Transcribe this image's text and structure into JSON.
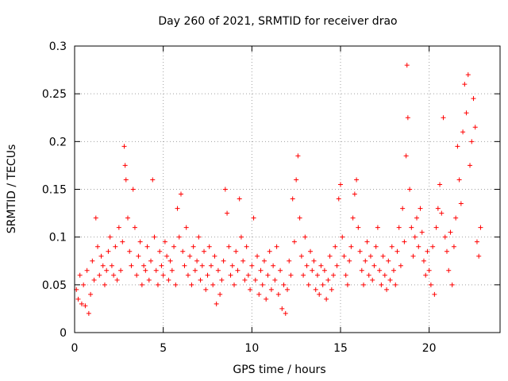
{
  "chart_data": {
    "type": "scatter",
    "title": "Day 260 of 2021, SRMTID for receiver drao",
    "xlabel": "GPS time / hours",
    "ylabel": "SRMTID / TECUs",
    "xlim": [
      0,
      24
    ],
    "ylim": [
      0,
      0.3
    ],
    "xticks": [
      0,
      5,
      10,
      15,
      20
    ],
    "xtick_labels": [
      "0",
      "5",
      "10",
      "15",
      "20"
    ],
    "yticks": [
      0,
      0.05,
      0.1,
      0.15,
      0.2,
      0.25,
      0.3
    ],
    "ytick_labels": [
      "0",
      "0.05",
      "0.1",
      "0.15",
      "0.2",
      "0.25",
      "0.3"
    ],
    "grid": true,
    "marker": "+",
    "series": [
      {
        "name": "SRMTID",
        "color": "#ff0000",
        "points": [
          [
            0.1,
            0.045
          ],
          [
            0.2,
            0.035
          ],
          [
            0.3,
            0.06
          ],
          [
            0.4,
            0.03
          ],
          [
            0.5,
            0.05
          ],
          [
            0.6,
            0.028
          ],
          [
            0.7,
            0.065
          ],
          [
            0.8,
            0.02
          ],
          [
            0.9,
            0.04
          ],
          [
            1.0,
            0.075
          ],
          [
            1.1,
            0.055
          ],
          [
            1.2,
            0.12
          ],
          [
            1.3,
            0.09
          ],
          [
            1.4,
            0.06
          ],
          [
            1.5,
            0.08
          ],
          [
            1.6,
            0.07
          ],
          [
            1.7,
            0.05
          ],
          [
            1.8,
            0.065
          ],
          [
            1.9,
            0.085
          ],
          [
            2.0,
            0.1
          ],
          [
            2.1,
            0.07
          ],
          [
            2.2,
            0.06
          ],
          [
            2.3,
            0.09
          ],
          [
            2.4,
            0.055
          ],
          [
            2.5,
            0.11
          ],
          [
            2.6,
            0.065
          ],
          [
            2.7,
            0.095
          ],
          [
            2.8,
            0.195
          ],
          [
            2.85,
            0.175
          ],
          [
            2.9,
            0.16
          ],
          [
            3.0,
            0.12
          ],
          [
            3.1,
            0.085
          ],
          [
            3.2,
            0.07
          ],
          [
            3.3,
            0.15
          ],
          [
            3.4,
            0.11
          ],
          [
            3.5,
            0.06
          ],
          [
            3.6,
            0.08
          ],
          [
            3.7,
            0.095
          ],
          [
            3.8,
            0.05
          ],
          [
            3.9,
            0.07
          ],
          [
            4.0,
            0.065
          ],
          [
            4.1,
            0.09
          ],
          [
            4.2,
            0.055
          ],
          [
            4.3,
            0.075
          ],
          [
            4.4,
            0.16
          ],
          [
            4.5,
            0.1
          ],
          [
            4.6,
            0.065
          ],
          [
            4.7,
            0.05
          ],
          [
            4.8,
            0.085
          ],
          [
            4.9,
            0.07
          ],
          [
            5.0,
            0.06
          ],
          [
            5.1,
            0.095
          ],
          [
            5.2,
            0.08
          ],
          [
            5.3,
            0.055
          ],
          [
            5.4,
            0.075
          ],
          [
            5.5,
            0.065
          ],
          [
            5.6,
            0.09
          ],
          [
            5.7,
            0.05
          ],
          [
            5.8,
            0.13
          ],
          [
            5.9,
            0.1
          ],
          [
            6.0,
            0.145
          ],
          [
            6.1,
            0.085
          ],
          [
            6.2,
            0.07
          ],
          [
            6.3,
            0.11
          ],
          [
            6.4,
            0.06
          ],
          [
            6.5,
            0.08
          ],
          [
            6.6,
            0.05
          ],
          [
            6.7,
            0.09
          ],
          [
            6.8,
            0.065
          ],
          [
            6.9,
            0.075
          ],
          [
            7.0,
            0.1
          ],
          [
            7.1,
            0.055
          ],
          [
            7.2,
            0.07
          ],
          [
            7.3,
            0.085
          ],
          [
            7.4,
            0.045
          ],
          [
            7.5,
            0.06
          ],
          [
            7.6,
            0.09
          ],
          [
            7.7,
            0.07
          ],
          [
            7.8,
            0.05
          ],
          [
            7.9,
            0.08
          ],
          [
            8.0,
            0.03
          ],
          [
            8.1,
            0.065
          ],
          [
            8.2,
            0.04
          ],
          [
            8.3,
            0.055
          ],
          [
            8.4,
            0.075
          ],
          [
            8.5,
            0.15
          ],
          [
            8.6,
            0.125
          ],
          [
            8.7,
            0.09
          ],
          [
            8.8,
            0.06
          ],
          [
            8.9,
            0.07
          ],
          [
            9.0,
            0.05
          ],
          [
            9.1,
            0.085
          ],
          [
            9.2,
            0.065
          ],
          [
            9.3,
            0.14
          ],
          [
            9.4,
            0.1
          ],
          [
            9.5,
            0.075
          ],
          [
            9.6,
            0.055
          ],
          [
            9.7,
            0.09
          ],
          [
            9.8,
            0.06
          ],
          [
            9.9,
            0.045
          ],
          [
            10.0,
            0.07
          ],
          [
            10.1,
            0.12
          ],
          [
            10.2,
            0.055
          ],
          [
            10.3,
            0.08
          ],
          [
            10.4,
            0.04
          ],
          [
            10.5,
            0.065
          ],
          [
            10.6,
            0.05
          ],
          [
            10.7,
            0.075
          ],
          [
            10.8,
            0.035
          ],
          [
            10.9,
            0.06
          ],
          [
            11.0,
            0.085
          ],
          [
            11.1,
            0.045
          ],
          [
            11.2,
            0.07
          ],
          [
            11.3,
            0.055
          ],
          [
            11.4,
            0.09
          ],
          [
            11.5,
            0.04
          ],
          [
            11.6,
            0.065
          ],
          [
            11.7,
            0.025
          ],
          [
            11.8,
            0.05
          ],
          [
            11.9,
            0.02
          ],
          [
            12.0,
            0.045
          ],
          [
            12.1,
            0.075
          ],
          [
            12.2,
            0.06
          ],
          [
            12.3,
            0.14
          ],
          [
            12.4,
            0.095
          ],
          [
            12.5,
            0.16
          ],
          [
            12.6,
            0.185
          ],
          [
            12.7,
            0.12
          ],
          [
            12.8,
            0.08
          ],
          [
            12.9,
            0.06
          ],
          [
            13.0,
            0.1
          ],
          [
            13.1,
            0.07
          ],
          [
            13.2,
            0.05
          ],
          [
            13.3,
            0.085
          ],
          [
            13.4,
            0.065
          ],
          [
            13.5,
            0.075
          ],
          [
            13.6,
            0.045
          ],
          [
            13.7,
            0.06
          ],
          [
            13.8,
            0.04
          ],
          [
            13.9,
            0.07
          ],
          [
            14.0,
            0.05
          ],
          [
            14.1,
            0.065
          ],
          [
            14.2,
            0.035
          ],
          [
            14.3,
            0.055
          ],
          [
            14.4,
            0.08
          ],
          [
            14.5,
            0.045
          ],
          [
            14.6,
            0.06
          ],
          [
            14.7,
            0.09
          ],
          [
            14.8,
            0.07
          ],
          [
            14.9,
            0.14
          ],
          [
            15.0,
            0.155
          ],
          [
            15.1,
            0.1
          ],
          [
            15.2,
            0.08
          ],
          [
            15.3,
            0.06
          ],
          [
            15.4,
            0.05
          ],
          [
            15.5,
            0.075
          ],
          [
            15.6,
            0.09
          ],
          [
            15.7,
            0.12
          ],
          [
            15.8,
            0.145
          ],
          [
            15.9,
            0.16
          ],
          [
            16.0,
            0.11
          ],
          [
            16.1,
            0.085
          ],
          [
            16.2,
            0.065
          ],
          [
            16.3,
            0.05
          ],
          [
            16.4,
            0.075
          ],
          [
            16.5,
            0.095
          ],
          [
            16.6,
            0.06
          ],
          [
            16.7,
            0.08
          ],
          [
            16.8,
            0.055
          ],
          [
            16.9,
            0.07
          ],
          [
            17.0,
            0.09
          ],
          [
            17.1,
            0.11
          ],
          [
            17.2,
            0.065
          ],
          [
            17.3,
            0.05
          ],
          [
            17.4,
            0.08
          ],
          [
            17.5,
            0.06
          ],
          [
            17.6,
            0.045
          ],
          [
            17.7,
            0.075
          ],
          [
            17.8,
            0.055
          ],
          [
            17.9,
            0.09
          ],
          [
            18.0,
            0.065
          ],
          [
            18.1,
            0.05
          ],
          [
            18.2,
            0.085
          ],
          [
            18.3,
            0.11
          ],
          [
            18.4,
            0.07
          ],
          [
            18.5,
            0.13
          ],
          [
            18.6,
            0.095
          ],
          [
            18.7,
            0.185
          ],
          [
            18.75,
            0.28
          ],
          [
            18.8,
            0.225
          ],
          [
            18.9,
            0.15
          ],
          [
            19.0,
            0.11
          ],
          [
            19.1,
            0.08
          ],
          [
            19.2,
            0.1
          ],
          [
            19.3,
            0.12
          ],
          [
            19.4,
            0.09
          ],
          [
            19.5,
            0.13
          ],
          [
            19.6,
            0.105
          ],
          [
            19.7,
            0.075
          ],
          [
            19.8,
            0.06
          ],
          [
            19.9,
            0.085
          ],
          [
            20.0,
            0.065
          ],
          [
            20.1,
            0.05
          ],
          [
            20.2,
            0.09
          ],
          [
            20.3,
            0.04
          ],
          [
            20.4,
            0.11
          ],
          [
            20.5,
            0.13
          ],
          [
            20.6,
            0.155
          ],
          [
            20.7,
            0.125
          ],
          [
            20.8,
            0.225
          ],
          [
            20.9,
            0.1
          ],
          [
            21.0,
            0.085
          ],
          [
            21.1,
            0.065
          ],
          [
            21.2,
            0.105
          ],
          [
            21.3,
            0.05
          ],
          [
            21.4,
            0.09
          ],
          [
            21.5,
            0.12
          ],
          [
            21.6,
            0.195
          ],
          [
            21.7,
            0.16
          ],
          [
            21.8,
            0.135
          ],
          [
            21.9,
            0.21
          ],
          [
            22.0,
            0.26
          ],
          [
            22.1,
            0.23
          ],
          [
            22.2,
            0.27
          ],
          [
            22.3,
            0.175
          ],
          [
            22.4,
            0.2
          ],
          [
            22.5,
            0.245
          ],
          [
            22.6,
            0.215
          ],
          [
            22.7,
            0.095
          ],
          [
            22.8,
            0.08
          ],
          [
            22.9,
            0.11
          ]
        ]
      }
    ]
  }
}
